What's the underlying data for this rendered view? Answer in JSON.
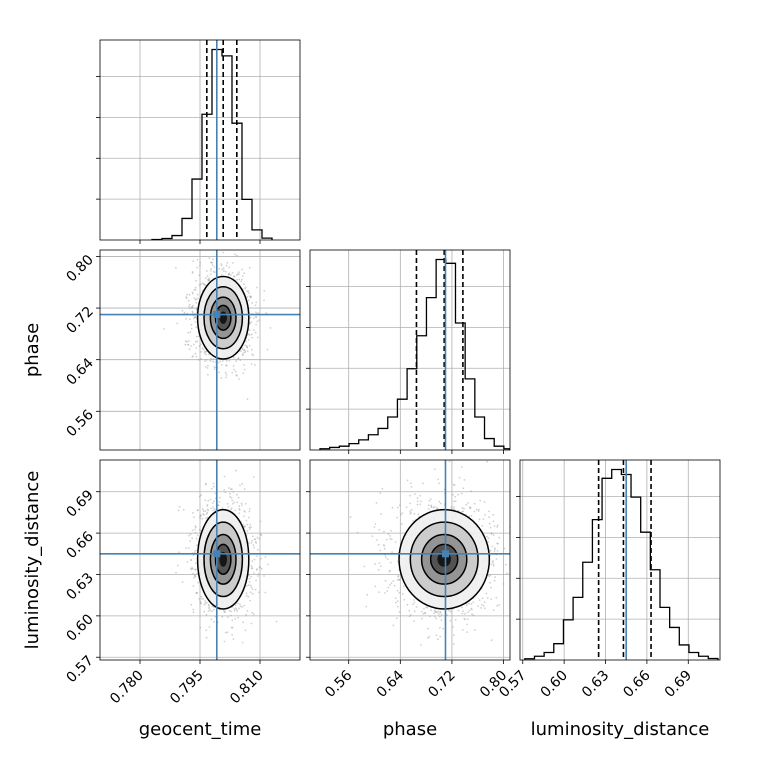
{
  "chart_data": {
    "type": "corner",
    "parameters": [
      {
        "key": "geocent_time",
        "label": "geocent_time",
        "range": [
          0.77,
          0.82
        ],
        "ticks": [
          "0.780",
          "0.795",
          "0.810"
        ],
        "truth": 0.7992,
        "quantiles": [
          0.7967,
          0.8008,
          0.8042
        ]
      },
      {
        "key": "phase",
        "label": "phase",
        "range": [
          0.5,
          0.81
        ],
        "ticks": [
          "0.56",
          "0.64",
          "0.72",
          "0.80"
        ],
        "truth": 0.71,
        "quantiles": [
          0.665,
          0.708,
          0.737
        ]
      },
      {
        "key": "luminosity_distance",
        "label": "luminosity_distance",
        "range": [
          0.568,
          0.713
        ],
        "ticks": [
          "0.57",
          "0.60",
          "0.63",
          "0.66",
          "0.69"
        ],
        "truth": 0.645,
        "quantiles": [
          0.625,
          0.643,
          0.663
        ]
      }
    ],
    "histograms": [
      {
        "param": "geocent_time",
        "bin_edges": [
          0.783,
          0.7855,
          0.788,
          0.7905,
          0.793,
          0.7955,
          0.798,
          0.8005,
          0.803,
          0.8055,
          0.808,
          0.8105,
          0.813
        ],
        "counts": [
          0.4,
          1.2,
          3.5,
          17,
          48,
          99,
          150,
          145,
          92,
          32,
          8,
          1.5
        ]
      },
      {
        "param": "phase",
        "bin_edges": [
          0.5155,
          0.5305,
          0.5455,
          0.5605,
          0.5755,
          0.5905,
          0.6055,
          0.6205,
          0.6355,
          0.6505,
          0.6655,
          0.6805,
          0.6955,
          0.7105,
          0.7255,
          0.7405,
          0.7555,
          0.7705,
          0.7855,
          0.8005,
          0.8095
        ],
        "counts": [
          1,
          2,
          3,
          5,
          8,
          12,
          17,
          26,
          40,
          64,
          90,
          120,
          150,
          147,
          100,
          56,
          26,
          9,
          3,
          1
        ]
      },
      {
        "param": "luminosity_distance",
        "bin_edges": [
          0.5715,
          0.5785,
          0.5855,
          0.5925,
          0.5995,
          0.6065,
          0.6135,
          0.6205,
          0.6275,
          0.6345,
          0.6415,
          0.6485,
          0.6555,
          0.6625,
          0.6695,
          0.6765,
          0.6835,
          0.6905,
          0.6975,
          0.7045,
          0.7115
        ],
        "counts": [
          1,
          3,
          6,
          13,
          32,
          50,
          78,
          112,
          145,
          152,
          148,
          130,
          102,
          72,
          42,
          26,
          12,
          6,
          3,
          1.2
        ]
      }
    ],
    "joints": [
      {
        "x": "geocent_time",
        "y": "phase",
        "center": [
          0.8008,
          0.705
        ],
        "sd": [
          0.0032,
          0.032
        ]
      },
      {
        "x": "geocent_time",
        "y": "luminosity_distance",
        "center": [
          0.8008,
          0.641
        ],
        "sd": [
          0.0032,
          0.018
        ]
      },
      {
        "x": "phase",
        "y": "luminosity_distance",
        "center": [
          0.708,
          0.641
        ],
        "sd": [
          0.035,
          0.018
        ]
      }
    ],
    "truth_color": "#4682b4",
    "contour_color": "#000000",
    "quantile_style": "dashed",
    "grid": true
  }
}
